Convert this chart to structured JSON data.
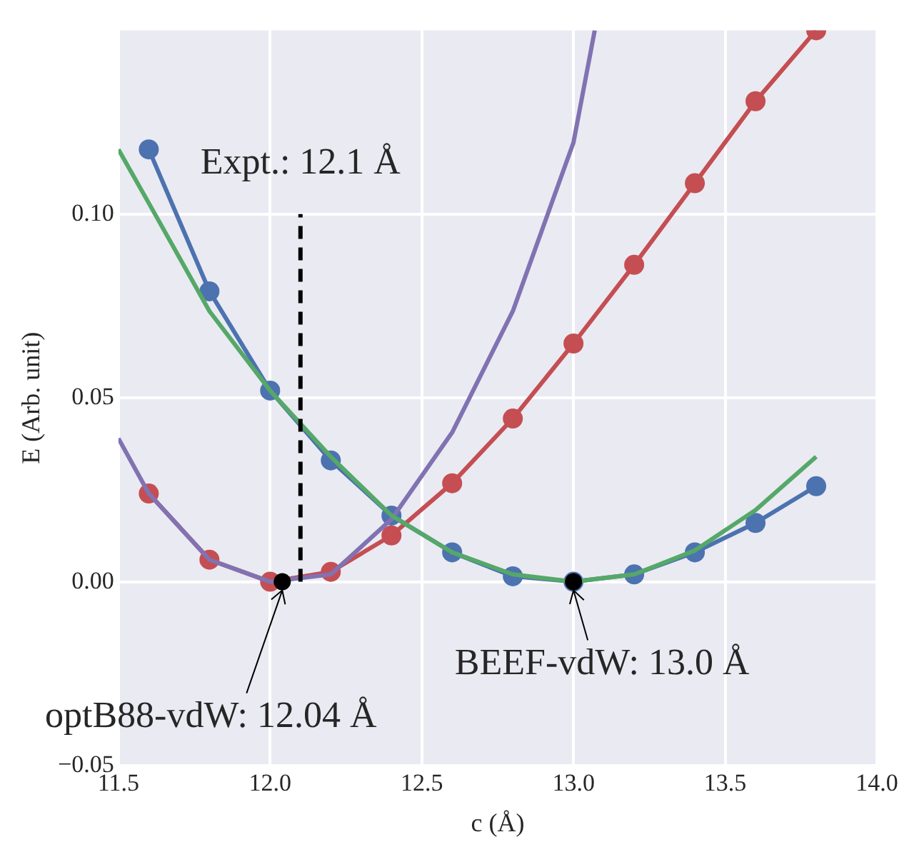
{
  "chart_data": {
    "type": "line",
    "xlabel": "c (Å)",
    "ylabel": "E (Arb. unit)",
    "xlim": [
      11.5,
      14.0
    ],
    "ylim": [
      -0.05,
      0.15
    ],
    "xticks": [
      11.5,
      {
        "value": 12.0,
        "label": "12.0"
      },
      12.5,
      {
        "value": 13.0,
        "label": "13.0"
      },
      13.5,
      {
        "value": 14.0,
        "label": "14.0"
      }
    ],
    "yticks": [
      {
        "value": -0.05,
        "label": "−0.05"
      },
      {
        "value": 0,
        "label": "0.00"
      },
      0.05,
      {
        "value": 0.1,
        "label": "0.10"
      }
    ],
    "grid": true,
    "legend": false,
    "series": [
      {
        "color": "#c44e52",
        "marker": "circle",
        "x": [
          11.6,
          11.8,
          12.0,
          12.2,
          12.4,
          12.6,
          12.8,
          13.0,
          13.2,
          13.4,
          13.6,
          13.8
        ],
        "values": [
          0.024,
          0.006,
          0,
          0.0027,
          0.0126,
          0.0268,
          0.0444,
          0.0648,
          0.0862,
          0.1084,
          0.1307,
          0.15
        ]
      },
      {
        "color": "#4c72b0",
        "marker": "circle",
        "x": [
          11.6,
          11.8,
          12.0,
          12.2,
          12.4,
          12.6,
          12.8,
          13.0,
          13.2,
          13.4,
          13.6,
          13.8
        ],
        "values": [
          0.1176,
          0.079,
          0.052,
          0.033,
          0.018,
          0.008,
          0.0015,
          0,
          0.002,
          0.008,
          0.016,
          0.026
        ]
      },
      {
        "color": "#8172b2",
        "marker": "none",
        "x": [
          11.5,
          11.6,
          11.8,
          12.0,
          12.2,
          12.4,
          12.6,
          12.8,
          13.0,
          13.07
        ],
        "values": [
          0.039,
          0.024,
          0.006,
          0,
          0.002,
          0.017,
          0.0406,
          0.0736,
          0.1195,
          0.15
        ]
      },
      {
        "color": "#55a868",
        "marker": "none",
        "x": [
          11.5,
          11.6,
          11.8,
          12.0,
          12.2,
          12.4,
          12.6,
          12.8,
          13.0,
          13.2,
          13.4,
          13.6,
          13.8
        ],
        "values": [
          0.1176,
          0.103,
          0.0736,
          0.052,
          0.034,
          0.018,
          0.008,
          0.002,
          0,
          0.002,
          0.0085,
          0.0195,
          0.034
        ]
      },
      {
        "color": "#000000",
        "marker": "none",
        "line_style": "dashed",
        "x": [
          12.1,
          12.1
        ],
        "values": [
          0,
          0.1
        ]
      },
      {
        "type": "scatter",
        "color": "#000000",
        "marker": "circle",
        "x": [
          12.04,
          13.0
        ],
        "values": [
          0,
          0
        ]
      }
    ],
    "annotations": [
      {
        "text": "Expt.: 12.1 Å",
        "x": 12.1,
        "y": 0.1
      },
      {
        "text": "BEEF-vdW: 13.0 Å",
        "x": 13.0,
        "y": 0
      },
      {
        "text": "optB88-vdW: 12.04 Å",
        "x": 12.04,
        "y": 0
      }
    ]
  }
}
